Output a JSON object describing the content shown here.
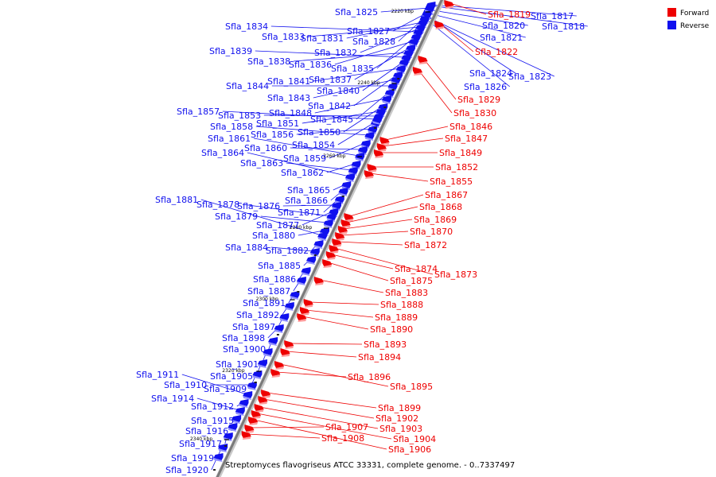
{
  "caption": "Streptomyces flavogriseus ATCC 33331, complete genome. - 0..7337497",
  "legend": [
    {
      "label": "Forward",
      "color": "#ee0000"
    },
    {
      "label": "Reverse",
      "color": "#1010ee"
    }
  ],
  "kbp_marks": [
    "2220 kbp",
    "2240 kbp",
    "2260 kbp",
    "2280 kbp",
    "2300 kbp",
    "2320 kbp",
    "2340 kbp"
  ],
  "reverse_genes": [
    "Sfla_1817",
    "Sfla_1818",
    "Sfla_1820",
    "Sfla_1821",
    "Sfla_1823",
    "Sfla_1824",
    "Sfla_1825",
    "Sfla_1826",
    "Sfla_1827",
    "Sfla_1828",
    "Sfla_1831",
    "Sfla_1832",
    "Sfla_1833",
    "Sfla_1834",
    "Sfla_1835",
    "Sfla_1836",
    "Sfla_1837",
    "Sfla_1838",
    "Sfla_1839",
    "Sfla_1840",
    "Sfla_1841",
    "Sfla_1842",
    "Sfla_1843",
    "Sfla_1844",
    "Sfla_1845",
    "Sfla_1848",
    "Sfla_1850",
    "Sfla_1851",
    "Sfla_1853",
    "Sfla_1854",
    "Sfla_1856",
    "Sfla_1857",
    "Sfla_1858",
    "Sfla_1859",
    "Sfla_1860",
    "Sfla_1861",
    "Sfla_1862",
    "Sfla_1863",
    "Sfla_1864",
    "Sfla_1865",
    "Sfla_1866",
    "Sfla_1871",
    "Sfla_1876",
    "Sfla_1877",
    "Sfla_1878",
    "Sfla_1879",
    "Sfla_1880",
    "Sfla_1881",
    "Sfla_1882",
    "Sfla_1884",
    "Sfla_1885",
    "Sfla_1886",
    "Sfla_1887",
    "Sfla_1891",
    "Sfla_1892",
    "Sfla_1897",
    "Sfla_1898",
    "Sfla_1900",
    "Sfla_1901",
    "Sfla_1905",
    "Sfla_1909",
    "Sfla_1910",
    "Sfla_1911",
    "Sfla_1912",
    "Sfla_1914",
    "Sfla_1915",
    "Sfla_1916",
    "Sfla_1917",
    "Sfla_1919",
    "Sfla_1920"
  ],
  "forward_genes": [
    "Sfla_1819",
    "Sfla_1822",
    "Sfla_1829",
    "Sfla_1830",
    "Sfla_1846",
    "Sfla_1847",
    "Sfla_1849",
    "Sfla_1852",
    "Sfla_1855",
    "Sfla_1867",
    "Sfla_1868",
    "Sfla_1869",
    "Sfla_1870",
    "Sfla_1872",
    "Sfla_1873",
    "Sfla_1874",
    "Sfla_1875",
    "Sfla_1883",
    "Sfla_1888",
    "Sfla_1889",
    "Sfla_1890",
    "Sfla_1893",
    "Sfla_1894",
    "Sfla_1895",
    "Sfla_1896",
    "Sfla_1899",
    "Sfla_1902",
    "Sfla_1903",
    "Sfla_1904",
    "Sfla_1906",
    "Sfla_1907",
    "Sfla_1908"
  ]
}
